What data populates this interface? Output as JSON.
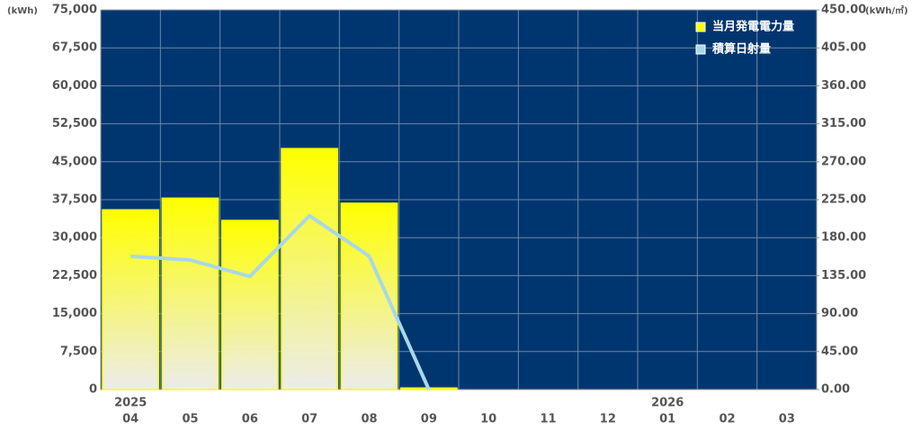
{
  "chart_data": {
    "type": "bar-line",
    "y_unit": "(kWh)",
    "y2_unit": "(kWh/㎡)",
    "categories": [
      "04",
      "05",
      "06",
      "07",
      "08",
      "09",
      "10",
      "11",
      "12",
      "01",
      "02",
      "03"
    ],
    "years": [
      "2025",
      null,
      null,
      null,
      null,
      null,
      null,
      null,
      null,
      "2026",
      null,
      null
    ],
    "series": [
      {
        "name": "当月発電電力量",
        "color": "#ffff00",
        "type": "bar",
        "values": [
          35500,
          37800,
          33400,
          47600,
          36800,
          300,
          null,
          null,
          null,
          null,
          null,
          null
        ]
      },
      {
        "name": "積算日射量",
        "color": "#a8d8e8",
        "type": "line",
        "axis": "y2",
        "values": [
          158,
          153.5,
          134,
          206,
          158,
          0,
          null,
          null,
          null,
          null,
          null,
          null
        ]
      }
    ],
    "ylim": [
      0,
      75000
    ],
    "yticks": [
      0,
      {
        "value": 7500,
        "label": "7,500"
      },
      {
        "value": 15000,
        "label": "15,000"
      },
      {
        "value": 22500,
        "label": "22,500"
      },
      {
        "value": 30000,
        "label": "30,000"
      },
      {
        "value": 37500,
        "label": "37,500"
      },
      {
        "value": 45000,
        "label": "45,000"
      },
      {
        "value": 52500,
        "label": "52,500"
      },
      {
        "value": 60000,
        "label": "60,000"
      },
      {
        "value": 67500,
        "label": "67,500"
      },
      {
        "value": 75000,
        "label": "75,000"
      }
    ],
    "y2lim": [
      0,
      450
    ],
    "y2ticks": [
      {
        "value": 0,
        "label": "0.00"
      },
      {
        "value": 45,
        "label": "45.00"
      },
      {
        "value": 90,
        "label": "90.00"
      },
      {
        "value": 135,
        "label": "135.00"
      },
      {
        "value": 180,
        "label": "180.00"
      },
      {
        "value": 225,
        "label": "225.00"
      },
      {
        "value": 270,
        "label": "270.00"
      },
      {
        "value": 315,
        "label": "315.00"
      },
      {
        "value": 360,
        "label": "360.00"
      },
      {
        "value": 405,
        "label": "405.00"
      },
      {
        "value": 450,
        "label": "450.00"
      }
    ],
    "grid": true,
    "background": "#003670",
    "legend": "top-right"
  }
}
